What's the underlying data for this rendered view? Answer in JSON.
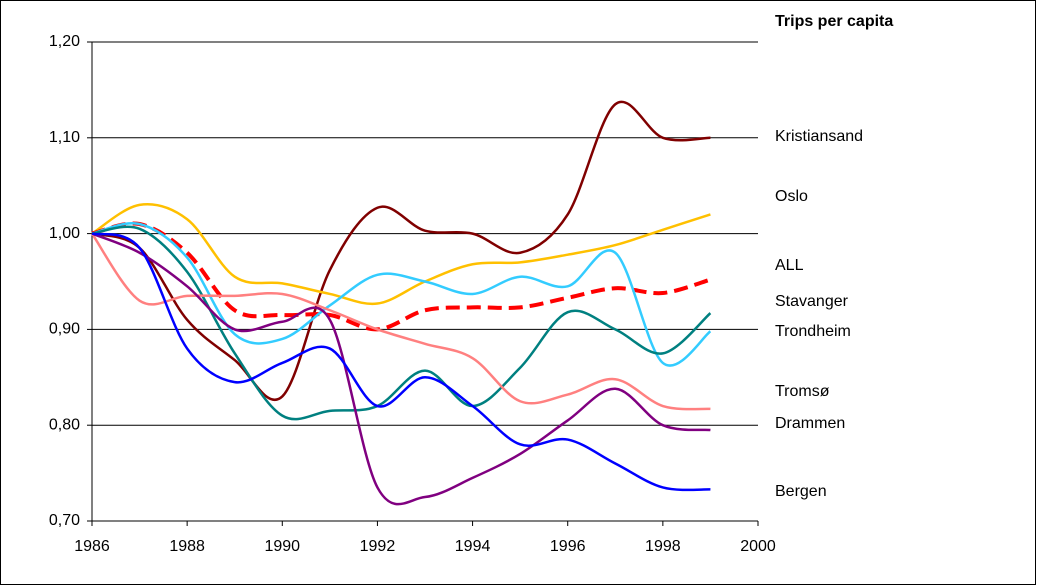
{
  "chart_data": {
    "type": "line",
    "title": "Trips per capita",
    "x": [
      1986,
      1987,
      1988,
      1989,
      1990,
      1991,
      1992,
      1993,
      1994,
      1995,
      1996,
      1997,
      1998,
      1999
    ],
    "xlim": [
      1986,
      2000
    ],
    "xticks": [
      1986,
      1988,
      1990,
      1992,
      1994,
      1996,
      1998,
      2000
    ],
    "ylim": [
      0.7,
      1.2
    ],
    "yticks": [
      {
        "value": 0.7,
        "label": "0,70"
      },
      {
        "value": 0.8,
        "label": "0,80"
      },
      {
        "value": 0.9,
        "label": "0,90"
      },
      {
        "value": 1.0,
        "label": "1,00"
      },
      {
        "value": 1.1,
        "label": "1,10"
      },
      {
        "value": 1.2,
        "label": "1,20"
      }
    ],
    "grid": true,
    "series": [
      {
        "name": "Kristiansand",
        "color": "#800000",
        "values": [
          1.0,
          0.985,
          0.91,
          0.868,
          0.83,
          0.962,
          1.027,
          1.003,
          1.0,
          0.98,
          1.02,
          1.135,
          1.1,
          1.1
        ]
      },
      {
        "name": "Oslo",
        "color": "#ffc000",
        "values": [
          1.0,
          1.03,
          1.015,
          0.955,
          0.948,
          0.937,
          0.927,
          0.95,
          0.968,
          0.97,
          0.978,
          0.988,
          1.004,
          1.02
        ]
      },
      {
        "name": "ALL",
        "color": "#ff0000",
        "dashed": true,
        "values": [
          1.0,
          1.01,
          0.98,
          0.92,
          0.915,
          0.915,
          0.9,
          0.92,
          0.923,
          0.923,
          0.933,
          0.943,
          0.938,
          0.952
        ]
      },
      {
        "name": "Stavanger",
        "color": "#33ccff",
        "values": [
          1.0,
          1.01,
          0.975,
          0.895,
          0.89,
          0.925,
          0.957,
          0.95,
          0.937,
          0.955,
          0.945,
          0.98,
          0.865,
          0.898
        ]
      },
      {
        "name": "Trondheim",
        "color": "#008080",
        "values": [
          1.0,
          1.005,
          0.96,
          0.875,
          0.81,
          0.815,
          0.82,
          0.857,
          0.82,
          0.86,
          0.918,
          0.9,
          0.875,
          0.917
        ]
      },
      {
        "name": "Tromsø",
        "color": "#ff8080",
        "values": [
          1.0,
          0.93,
          0.935,
          0.935,
          0.937,
          0.92,
          0.9,
          0.885,
          0.87,
          0.825,
          0.832,
          0.848,
          0.82,
          0.817
        ]
      },
      {
        "name": "Drammen",
        "color": "#800080",
        "values": [
          1.0,
          0.98,
          0.945,
          0.9,
          0.908,
          0.91,
          0.735,
          0.725,
          0.745,
          0.77,
          0.805,
          0.838,
          0.8,
          0.795
        ]
      },
      {
        "name": "Bergen",
        "color": "#0000ff",
        "values": [
          1.0,
          0.985,
          0.88,
          0.845,
          0.865,
          0.88,
          0.82,
          0.85,
          0.82,
          0.78,
          0.785,
          0.76,
          0.735,
          0.733
        ]
      }
    ]
  }
}
